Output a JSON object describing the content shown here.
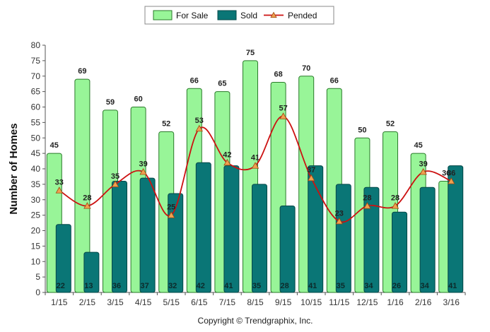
{
  "chart_data": {
    "type": "bar",
    "ylabel": "Number of Homes",
    "xlabel": "",
    "ylim": [
      0,
      80
    ],
    "ytick_step": 5,
    "grid": false,
    "legend_position": "top-center",
    "categories": [
      "1/15",
      "2/15",
      "3/15",
      "4/15",
      "5/15",
      "6/15",
      "7/15",
      "8/15",
      "9/15",
      "10/15",
      "11/15",
      "12/15",
      "1/16",
      "2/16",
      "3/16"
    ],
    "series": [
      {
        "name": "For Sale",
        "type": "bar",
        "color": "#98f598",
        "stroke": "#2a7a2a",
        "values": [
          45,
          69,
          59,
          60,
          52,
          66,
          65,
          75,
          68,
          70,
          66,
          50,
          52,
          45,
          36
        ]
      },
      {
        "name": "Sold",
        "type": "bar",
        "color": "#0a7676",
        "stroke": "#054848",
        "values": [
          22,
          13,
          36,
          37,
          32,
          42,
          41,
          35,
          28,
          41,
          35,
          34,
          26,
          34,
          41
        ]
      },
      {
        "name": "Pended",
        "type": "line",
        "color": "#cc1111",
        "marker_color": "#f0a050",
        "values": [
          33,
          28,
          35,
          39,
          25,
          53,
          42,
          41,
          57,
          37,
          23,
          28,
          28,
          39,
          36
        ]
      }
    ]
  },
  "footer": {
    "copyright": "Copyright © Trendgraphix, Inc."
  }
}
